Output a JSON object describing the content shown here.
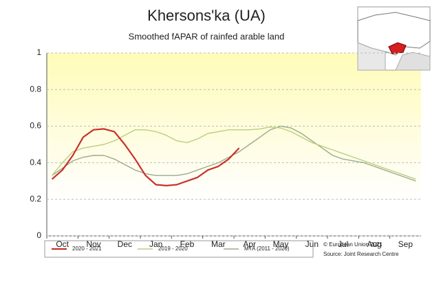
{
  "chart_data": {
    "type": "line",
    "title": "Khersons'ka (UA)",
    "subtitle": "Smoothed fAPAR of rainfed arable land",
    "categories": [
      null,
      "Oct",
      null,
      null,
      "Nov",
      null,
      null,
      "Dec",
      null,
      null,
      "Jan",
      null,
      null,
      "Feb",
      null,
      null,
      "Mar",
      null,
      null,
      "Apr",
      null,
      null,
      "May",
      null,
      null,
      "Jun",
      null,
      null,
      "Jul",
      null,
      null,
      "Aug",
      null,
      null,
      "Sep",
      null
    ],
    "series": [
      {
        "name": "2020 - 2021",
        "color": "#c8302a",
        "values": [
          0.31,
          0.36,
          0.44,
          0.54,
          0.58,
          0.585,
          0.57,
          0.5,
          0.42,
          0.33,
          0.28,
          0.275,
          0.28,
          0.3,
          0.32,
          0.36,
          0.38,
          0.42,
          0.48,
          null,
          null,
          null,
          null,
          null,
          null,
          null,
          null,
          null,
          null,
          null,
          null,
          null,
          null,
          null,
          null,
          null
        ]
      },
      {
        "name": "2019 - 2020",
        "color": "#b8cf7e",
        "values": [
          0.33,
          0.4,
          0.46,
          0.48,
          0.49,
          0.5,
          0.52,
          0.55,
          0.58,
          0.58,
          0.57,
          0.55,
          0.52,
          0.51,
          0.53,
          0.56,
          0.57,
          0.58,
          0.58,
          0.58,
          0.585,
          0.595,
          0.59,
          0.57,
          0.54,
          0.51,
          0.49,
          0.47,
          0.45,
          0.43,
          0.41,
          0.39,
          0.37,
          0.35,
          0.33,
          0.31
        ]
      },
      {
        "name": "MTA (2011 - 2020)",
        "color": "#9aaa8a",
        "values": [
          0.33,
          0.37,
          0.41,
          0.43,
          0.44,
          0.44,
          0.42,
          0.39,
          0.36,
          0.34,
          0.33,
          0.33,
          0.33,
          0.34,
          0.36,
          0.38,
          0.4,
          0.43,
          0.46,
          0.5,
          0.54,
          0.58,
          0.6,
          0.59,
          0.56,
          0.52,
          0.48,
          0.44,
          0.42,
          0.41,
          0.4,
          0.38,
          0.36,
          0.34,
          0.32,
          0.3
        ]
      }
    ],
    "ylim": [
      0,
      1
    ],
    "yticks": [
      0,
      0.2,
      0.4,
      0.6,
      0.8,
      1
    ],
    "grid": true,
    "legend": "bottom",
    "source": [
      "© European Union 2021",
      "Source: Joint Research Centre"
    ]
  }
}
